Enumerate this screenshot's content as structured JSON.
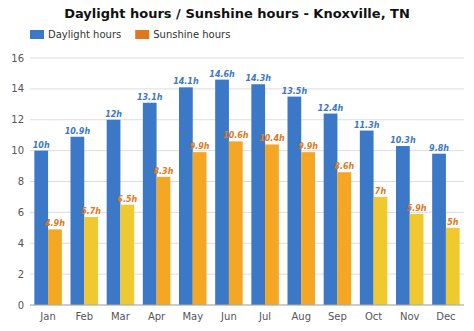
{
  "chart_data": {
    "type": "bar",
    "title": "Daylight hours / Sunshine hours - Knoxville, TN",
    "categories": [
      "Jan",
      "Feb",
      "Mar",
      "Apr",
      "May",
      "Jun",
      "Jul",
      "Aug",
      "Sep",
      "Oct",
      "Nov",
      "Dec"
    ],
    "series": [
      {
        "name": "Daylight hours",
        "color": "#3c78c8",
        "values": [
          10.0,
          10.9,
          12.0,
          13.1,
          14.1,
          14.6,
          14.3,
          13.5,
          12.4,
          11.3,
          10.3,
          9.8
        ],
        "value_labels": [
          "10h",
          "10.9h",
          "12h",
          "13.1h",
          "14.1h",
          "14.6h",
          "14.3h",
          "13.5h",
          "12.4h",
          "11.3h",
          "10.3h",
          "9.8h"
        ]
      },
      {
        "name": "Sunshine hours",
        "color": "#e07820",
        "colors": [
          "#f5a623",
          "#f0c830",
          "#f0c830",
          "#f5a623",
          "#f5a623",
          "#f5a623",
          "#f5a623",
          "#f5a623",
          "#f5a623",
          "#f0c830",
          "#f0c830",
          "#f0c830"
        ],
        "values": [
          4.9,
          5.7,
          6.5,
          8.3,
          9.9,
          10.6,
          10.4,
          9.9,
          8.6,
          7.0,
          5.9,
          5.0
        ],
        "value_labels": [
          "4.9h",
          "5.7h",
          "6.5h",
          "8.3h",
          "9.9h",
          "10.6h",
          "10.4h",
          "9.9h",
          "8.6h",
          "7h",
          "5.9h",
          "5h"
        ]
      }
    ],
    "ylim": [
      0,
      16
    ],
    "yticks": [
      0,
      2,
      4,
      6,
      8,
      10,
      12,
      14,
      16
    ],
    "grid": true,
    "legend": "upper left",
    "data_labels": true
  }
}
